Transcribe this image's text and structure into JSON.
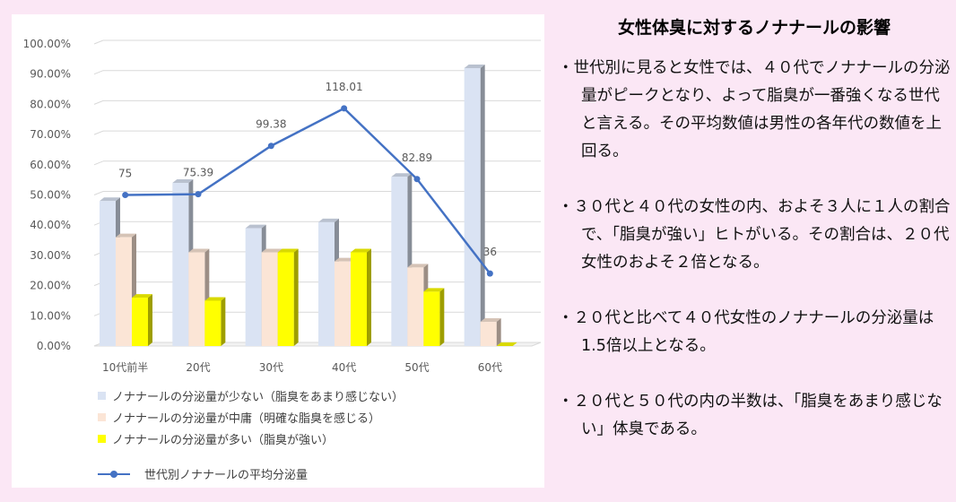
{
  "chart_data": {
    "type": "bar",
    "categories": [
      "10代前半",
      "20代",
      "30代",
      "40代",
      "50代",
      "60代"
    ],
    "y_ticks": [
      "100.00%",
      "90.00%",
      "80.00%",
      "70.00%",
      "60.00%",
      "50.00%",
      "40.00%",
      "30.00%",
      "20.00%",
      "10.00%",
      "0.00%"
    ],
    "ylim": [
      0,
      1
    ],
    "grid": true,
    "legend_position": "bottom",
    "series": [
      {
        "name": "ノナナールの分泌量が少ない（脂臭をあまり感じない）",
        "color": "#dae3f3",
        "values": [
          0.48,
          0.54,
          0.39,
          0.41,
          0.56,
          0.92
        ]
      },
      {
        "name": "ノナナールの分泌量が中庸（明確な脂臭を感じる）",
        "color": "#fbe5d6",
        "values": [
          0.36,
          0.31,
          0.31,
          0.28,
          0.26,
          0.08
        ]
      },
      {
        "name": "ノナナールの分泌量が多い（脂臭が強い）",
        "color": "#ffff00",
        "values": [
          0.16,
          0.15,
          0.31,
          0.31,
          0.18,
          0.0
        ]
      }
    ],
    "line_series": {
      "name": "世代別ノナナールの平均分泌量",
      "color": "#4472c4",
      "values": [
        75,
        75.39,
        99.38,
        118.01,
        82.89,
        36
      ],
      "labels": [
        "75",
        "75.39",
        "99.38",
        "118.01",
        "82.89",
        "36"
      ]
    }
  },
  "panel": {
    "title": "女性体臭に対するノナナールの影響",
    "bullets": [
      "・世代別に見ると女性では、４０代でノナナールの分泌量がピークとなり、よって脂臭が一番強くなる世代と言える。その平均数値は男性の各年代の数値を上回る。",
      "・３０代と４０代の女性の内、およそ３人に１人の割合で、「脂臭が強い」ヒトがいる。その割合は、２０代女性のおよそ２倍となる。",
      "・２０代と比べて４０代女性のノナナールの分泌量は1.5倍以上となる。",
      "・２０代と５０代の内の半数は、「脂臭をあまり感じない」体臭である。"
    ]
  }
}
